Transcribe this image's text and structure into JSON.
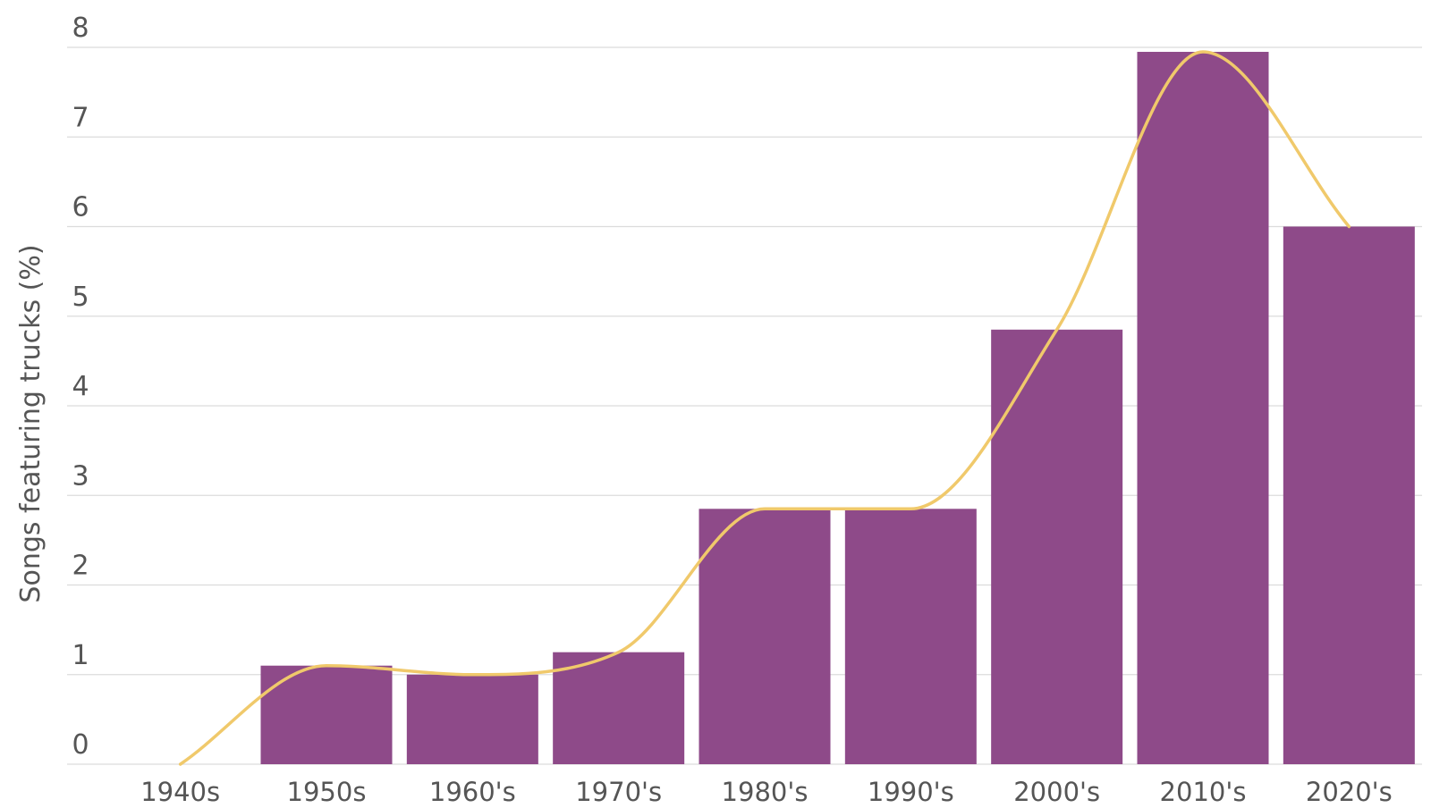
{
  "chart_data": {
    "type": "bar",
    "title": "",
    "xlabel": "",
    "ylabel": "Songs featuring trucks (%)",
    "ylim": [
      0,
      8
    ],
    "yticks": [
      0,
      1,
      2,
      3,
      4,
      5,
      6,
      7,
      8
    ],
    "categories": [
      "1940s",
      "1950s",
      "1960's",
      "1970's",
      "1980's",
      "1990's",
      "2000's",
      "2010's",
      "2020's"
    ],
    "values": [
      0,
      1.1,
      1.0,
      1.25,
      2.85,
      2.85,
      4.85,
      7.95,
      6.0
    ],
    "grid": true,
    "legend": "none",
    "trend_line": true,
    "colors": {
      "bar": "#8e4a89",
      "line": "#f0c96b",
      "grid": "#dcdcdc",
      "axis_text": "#555555"
    }
  }
}
